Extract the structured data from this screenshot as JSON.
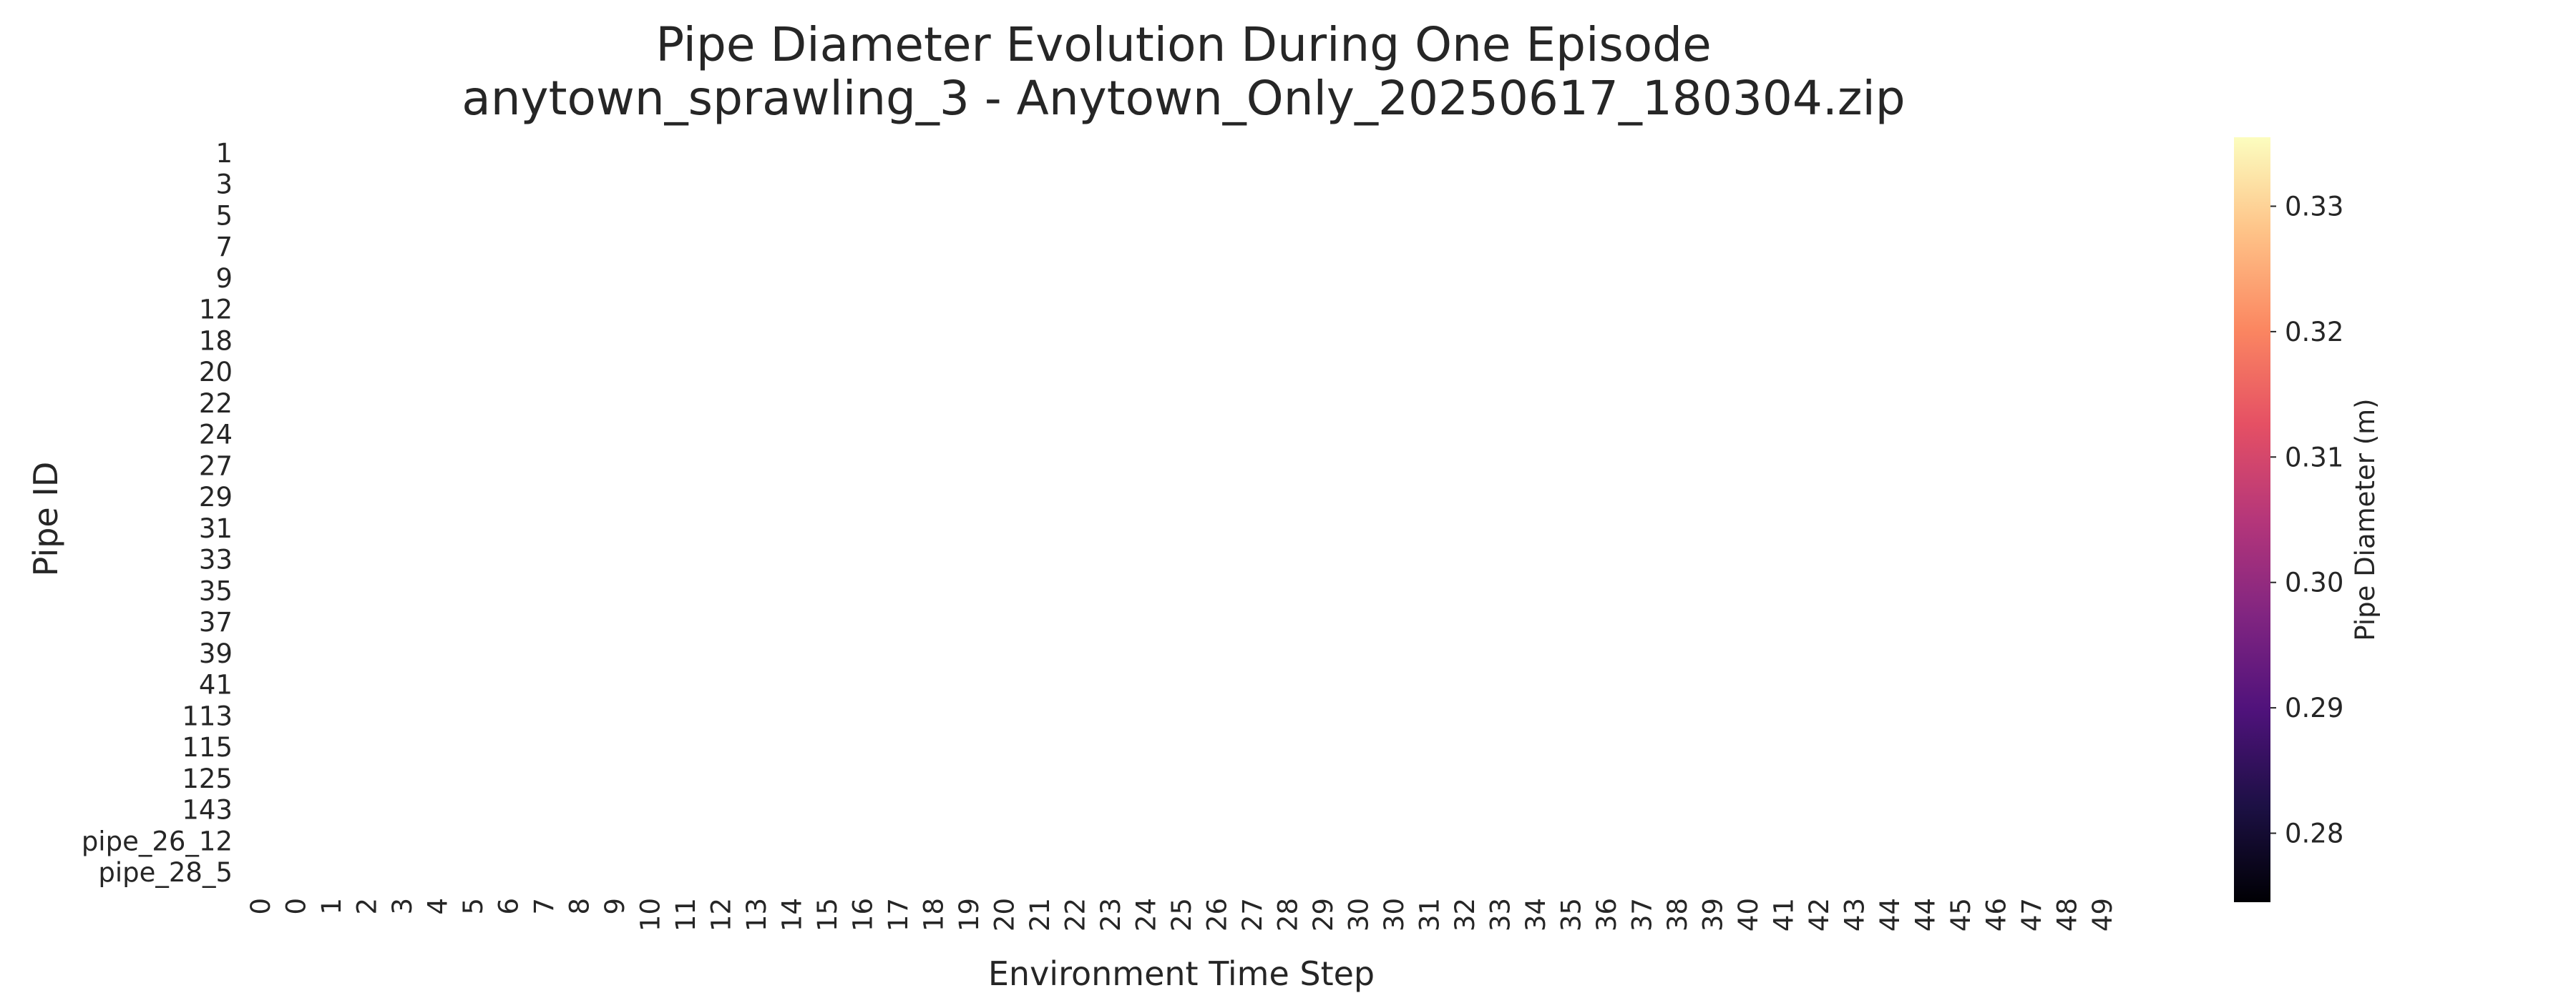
{
  "chart_data": {
    "type": "heatmap",
    "title": [
      "Pipe Diameter Evolution During One Episode",
      "anytown_sprawling_3 - Anytown_Only_20250617_180304.zip"
    ],
    "xlabel": "Environment Time Step",
    "ylabel": "Pipe ID",
    "y_categories": [
      "1",
      "3",
      "5",
      "7",
      "9",
      "12",
      "18",
      "20",
      "22",
      "24",
      "27",
      "29",
      "31",
      "33",
      "35",
      "37",
      "39",
      "41",
      "113",
      "115",
      "125",
      "143",
      "pipe_26_12",
      "pipe_28_5"
    ],
    "x_categories": [
      "0",
      "0",
      "1",
      "2",
      "3",
      "4",
      "5",
      "6",
      "7",
      "8",
      "9",
      "10",
      "11",
      "12",
      "13",
      "14",
      "15",
      "16",
      "17",
      "18",
      "19",
      "20",
      "21",
      "22",
      "23",
      "24",
      "25",
      "26",
      "27",
      "28",
      "29",
      "30",
      "30",
      "31",
      "32",
      "33",
      "34",
      "35",
      "36",
      "37",
      "38",
      "39",
      "40",
      "41",
      "42",
      "43",
      "44",
      "44",
      "45",
      "46",
      "47",
      "48",
      "49"
    ],
    "values": [],
    "colorbar": {
      "label": "Pipe Diameter (m)",
      "colormap": "magma",
      "range": [
        0.2745,
        0.3355
      ],
      "ticks": [
        0.28,
        0.29,
        0.3,
        0.31,
        0.32,
        0.33
      ],
      "tick_labels": [
        "0.28",
        "0.29",
        "0.30",
        "0.31",
        "0.32",
        "0.33"
      ]
    },
    "grid": false,
    "legend": "none"
  },
  "colors": {
    "text": "#262626",
    "background": "#ffffff",
    "magma": [
      "#000004",
      "#1c1044",
      "#4f127b",
      "#812581",
      "#b5367a",
      "#e55064",
      "#fb8761",
      "#fec287",
      "#fcfdbf"
    ]
  }
}
